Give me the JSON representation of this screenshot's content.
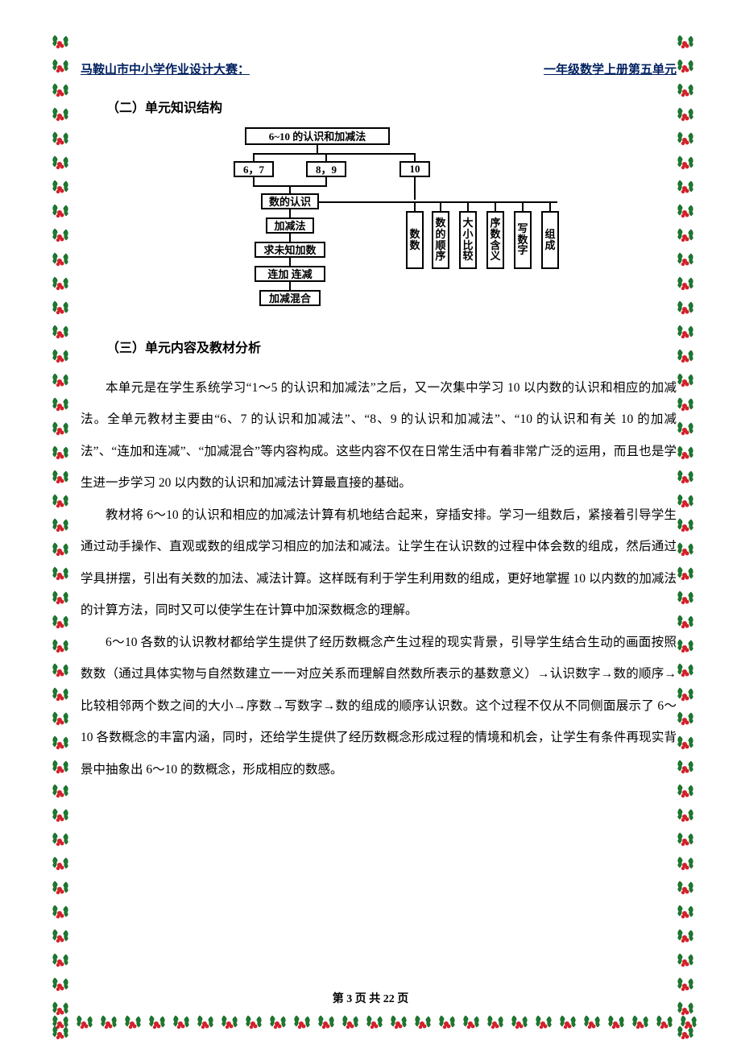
{
  "header": {
    "left": "马鞍山市中小学作业设计大赛：",
    "right": "一年级数学上册第五单元"
  },
  "sections": {
    "s1_title": "（二）单元知识结构",
    "s2_title": "（三）单元内容及教材分析"
  },
  "diagram": {
    "type": "flowchart",
    "border_color": "#000000",
    "box_bg": "#ffffff",
    "font": "SimSun, serif",
    "fontsize": 13,
    "nodes": {
      "root": "6~10 的认识和加减法",
      "n67": "6，7",
      "n89": "8，9",
      "n10": "10",
      "recog": "数的认识",
      "addsub": "加减法",
      "unknown": "求未知加数",
      "lianjia": "连加  连减",
      "mix": "加减混合",
      "v_count": "数数",
      "v_order": "数的顺序",
      "v_compare": "大小比较",
      "v_ordinal": "序数含义",
      "v_write": "写数字",
      "v_compose": "组成"
    }
  },
  "paragraphs": {
    "p1": "本单元是在学生系统学习“1～5 的认识和加减法”之后，又一次集中学习 10 以内数的认识和相应的加减法。全单元教材主要由“6、7 的认识和加减法”、“8、9 的认识和加减法”、“10 的认识和有关 10 的加减法”、“连加和连减”、“加减混合”等内容构成。这些内容不仅在日常生活中有着非常广泛的运用，而且也是学生进一步学习 20 以内数的认识和加减法计算最直接的基础。",
    "p2": "教材将 6～10 的认识和相应的加减法计算有机地结合起来，穿插安排。学习一组数后，紧接着引导学生通过动手操作、直观或数的组成学习相应的加法和减法。让学生在认识数的过程中体会数的组成，然后通过学具拼摆，引出有关数的加法、减法计算。这样既有利于学生利用数的组成，更好地掌握 10 以内数的加减法的计算方法，同时又可以使学生在计算中加深数概念的理解。",
    "p3": "6～10 各数的认识教材都给学生提供了经历数概念产生过程的现实背景，引导学生结合生动的画面按照数数（通过具体实物与自然数建立一一对应关系而理解自然数所表示的基数意义）→认识数字→数的顺序→比较相邻两个数之间的大小→序数→写数字→数的组成的顺序认识数。这个过程不仅从不同侧面展示了 6～10 各数概念的丰富内涵，同时，还给学生提供了经历数概念形成过程的情境和机会，让学生有条件再现实背景中抽象出 6～10 的数概念，形成相应的数感。"
  },
  "footer": {
    "prefix": "第 ",
    "page": "3",
    "mid": " 页 共 ",
    "total": "22",
    "suffix": " 页"
  },
  "colors": {
    "header_text": "#002060",
    "body_text": "#000000",
    "holly_leaf": "#1b7a2e",
    "holly_leaf_dark": "#0e5a1c",
    "holly_berry": "#d4202a",
    "background": "#ffffff"
  }
}
